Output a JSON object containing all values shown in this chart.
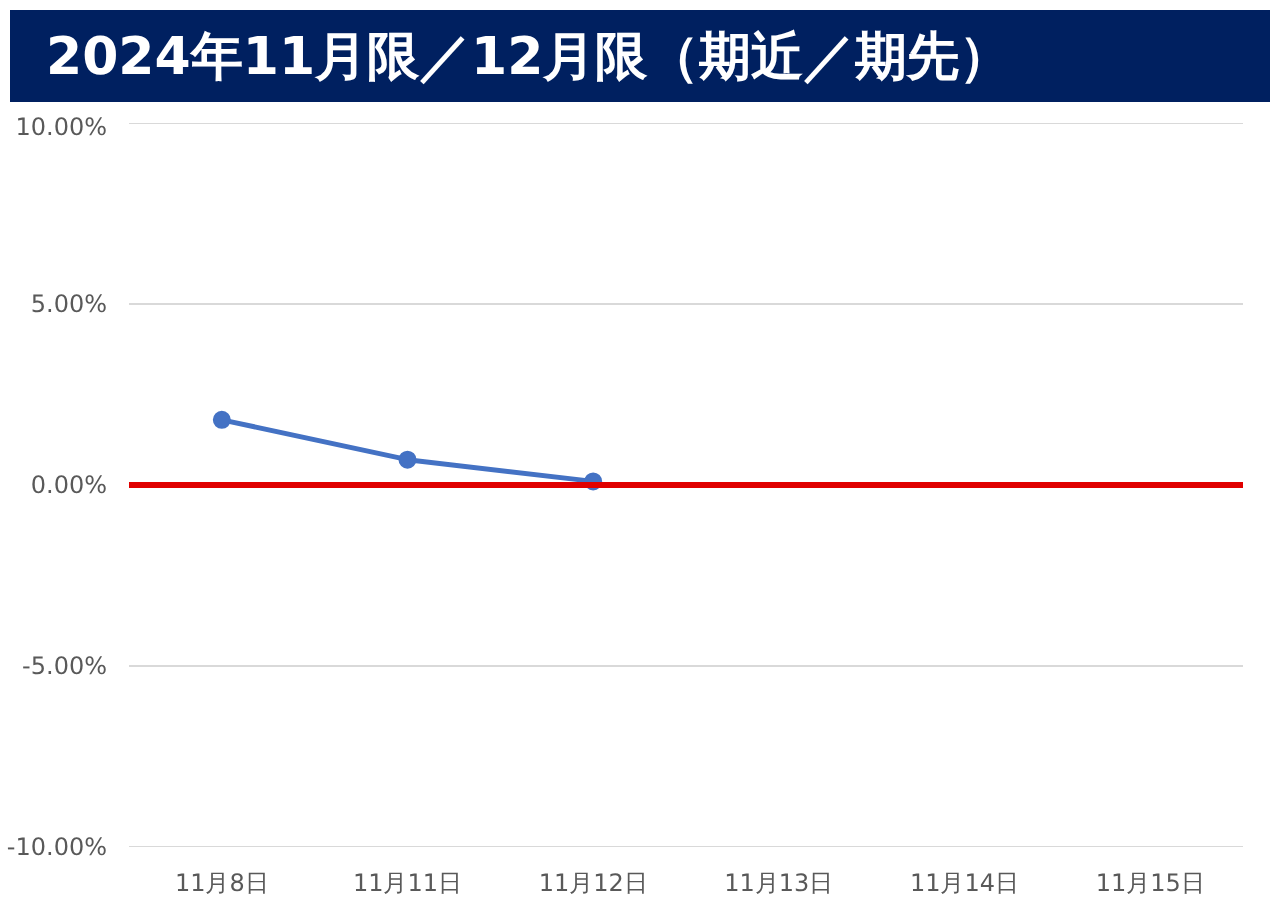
{
  "chart_data": {
    "type": "line",
    "title": "2024年11月限／12月限（期近／期先）",
    "categories": [
      "11月8日",
      "11月11日",
      "11月12日",
      "11月13日",
      "11月14日",
      "11月15日"
    ],
    "series": [
      {
        "color": "#4472c4",
        "values": [
          1.8,
          0.7,
          0.1,
          null,
          null,
          null
        ]
      }
    ],
    "ylim": [
      -10,
      10
    ],
    "yticks": [
      {
        "value": -10,
        "label": "-10.00%"
      },
      {
        "value": -5,
        "label": "-5.00%"
      },
      {
        "value": 0,
        "label": "0.00%"
      },
      {
        "value": 5,
        "label": "5.00%"
      },
      {
        "value": 10,
        "label": "10.00%"
      }
    ],
    "ref_lines": [
      {
        "axis": "y",
        "value": 0,
        "color": "#e00000"
      }
    ],
    "grid": "y",
    "marker": "circle",
    "line_style": "solid"
  }
}
